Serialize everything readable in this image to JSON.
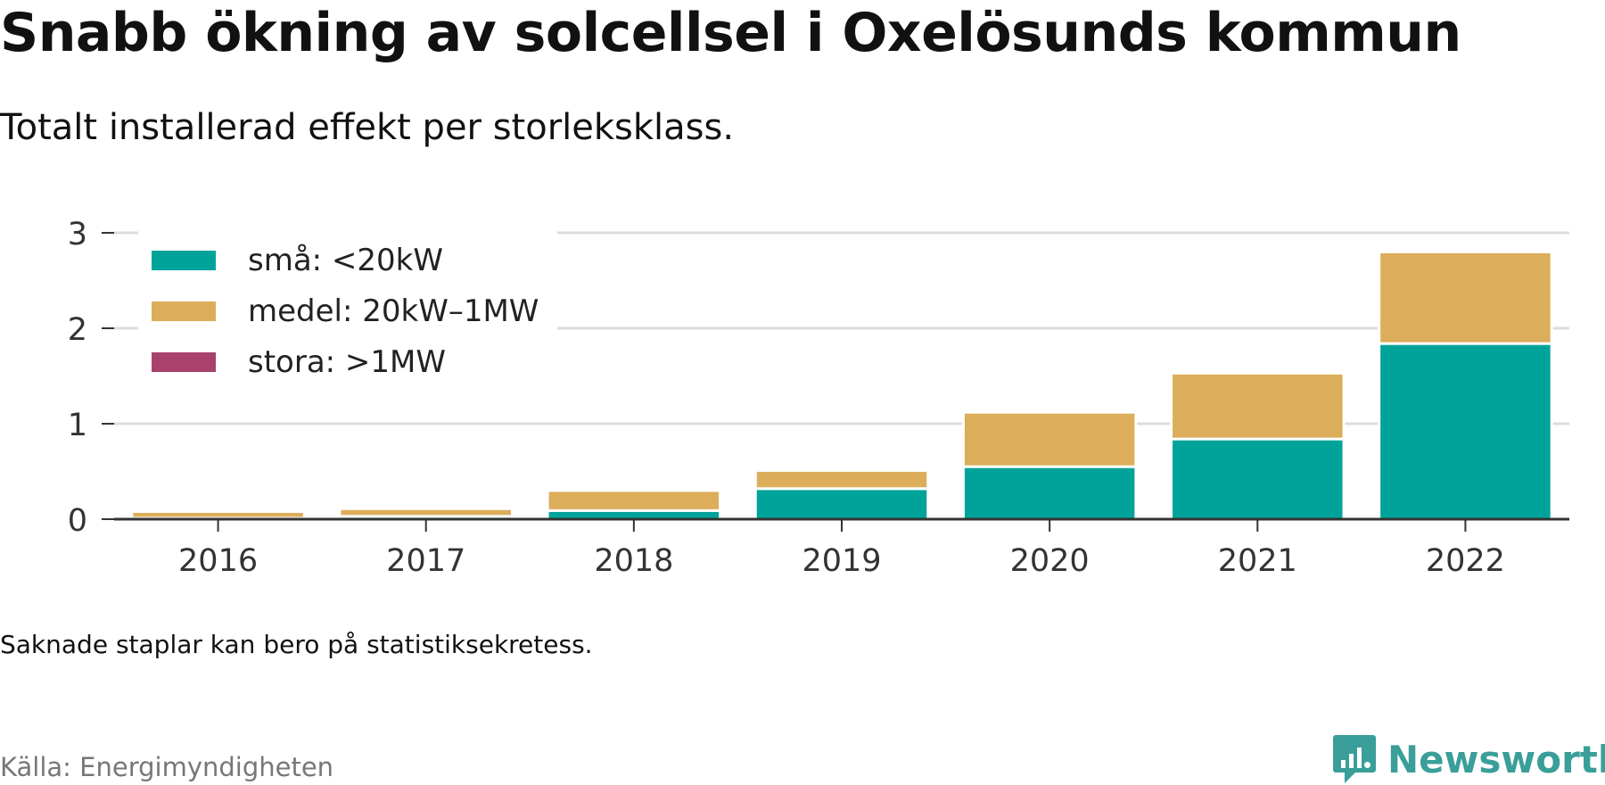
{
  "header": {
    "title": "Snabb ökning av solcellsel i Oxelösunds kommun",
    "subtitle": "Totalt installerad effekt per storleksklass."
  },
  "footer": {
    "note": "Saknade staplar kan bero på statistiksekretess.",
    "source": "Källa: Energimyndigheten",
    "brand": "Newsworthy",
    "brand_color": "#3a9e99"
  },
  "chart_data": {
    "type": "bar",
    "stacked": true,
    "categories": [
      "2016",
      "2017",
      "2018",
      "2019",
      "2020",
      "2021",
      "2022"
    ],
    "series": [
      {
        "name": "små: <20kW",
        "color": "#00a39a",
        "values": [
          0.01,
          0.03,
          0.09,
          0.32,
          0.55,
          0.84,
          1.84
        ]
      },
      {
        "name": "medel: 20kW–1MW",
        "color": "#dcad5b",
        "values": [
          0.07,
          0.08,
          0.21,
          0.19,
          0.57,
          0.69,
          0.96
        ]
      },
      {
        "name": "stora: >1MW",
        "color": "#a8416b",
        "values": [
          0,
          0,
          0,
          0,
          0,
          0,
          0
        ]
      }
    ],
    "ylim": [
      0,
      3
    ],
    "yticks": [
      0,
      1,
      2,
      3
    ],
    "grid": true,
    "legend": "top-left",
    "xlabel": "",
    "ylabel": ""
  }
}
